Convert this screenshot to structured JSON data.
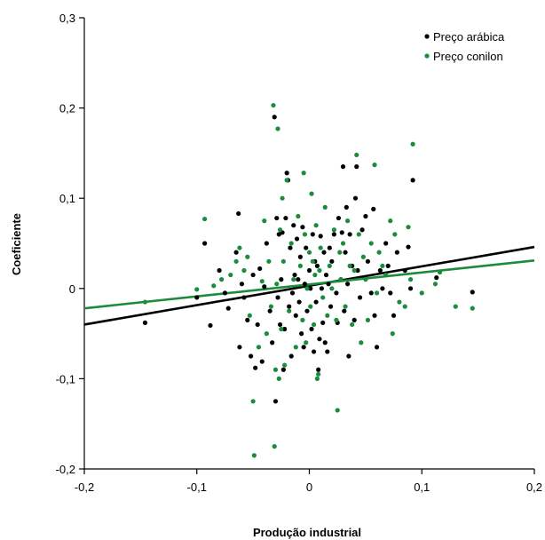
{
  "chart_data": {
    "type": "scatter",
    "title": "",
    "xlabel": "Produção industrial",
    "ylabel": "Coeficiente",
    "xlim": [
      -0.2,
      0.2
    ],
    "ylim": [
      -0.2,
      0.3
    ],
    "xticks": [
      -0.2,
      -0.1,
      0,
      0.1,
      0.2
    ],
    "xtick_labels": [
      "-0,2",
      "-0,1",
      "0",
      "0,1",
      "0,2"
    ],
    "yticks": [
      -0.2,
      -0.1,
      0,
      0.1,
      0.2,
      0.3
    ],
    "ytick_labels": [
      "-0,2",
      "-0,1",
      "0",
      "0,1",
      "0,2",
      "0,3"
    ],
    "grid": false,
    "legend_position": "top-right",
    "series": [
      {
        "name": "Preço arábica",
        "color": "#000000",
        "trendline": {
          "x": [
            -0.2,
            0.2
          ],
          "y": [
            -0.04,
            0.046
          ]
        },
        "points": [
          [
            -0.146,
            -0.038
          ],
          [
            -0.1,
            -0.01
          ],
          [
            -0.093,
            0.05
          ],
          [
            -0.088,
            -0.041
          ],
          [
            -0.08,
            0.02
          ],
          [
            -0.075,
            -0.005
          ],
          [
            -0.072,
            -0.022
          ],
          [
            -0.065,
            0.04
          ],
          [
            -0.063,
            0.083
          ],
          [
            -0.062,
            -0.065
          ],
          [
            -0.06,
            0.005
          ],
          [
            -0.058,
            -0.01
          ],
          [
            -0.055,
            -0.035
          ],
          [
            -0.052,
            -0.075
          ],
          [
            -0.05,
            0.015
          ],
          [
            -0.048,
            -0.088
          ],
          [
            -0.046,
            -0.04
          ],
          [
            -0.044,
            0.022
          ],
          [
            -0.042,
            -0.081
          ],
          [
            -0.04,
            0.002
          ],
          [
            -0.038,
            0.05
          ],
          [
            -0.035,
            -0.025
          ],
          [
            -0.033,
            -0.06
          ],
          [
            -0.031,
            0.19
          ],
          [
            -0.03,
            -0.125
          ],
          [
            -0.029,
            0.078
          ],
          [
            -0.028,
            -0.01
          ],
          [
            -0.027,
            0.06
          ],
          [
            -0.026,
            -0.04
          ],
          [
            -0.025,
            0.01
          ],
          [
            -0.024,
            0.062
          ],
          [
            -0.023,
            -0.09
          ],
          [
            -0.022,
            -0.045
          ],
          [
            -0.021,
            0.078
          ],
          [
            -0.02,
            0.128
          ],
          [
            -0.019,
            0.12
          ],
          [
            -0.018,
            -0.02
          ],
          [
            -0.017,
            0.045
          ],
          [
            -0.016,
            -0.075
          ],
          [
            -0.015,
            -0.005
          ],
          [
            -0.014,
            0.07
          ],
          [
            -0.013,
            0.015
          ],
          [
            -0.012,
            -0.03
          ],
          [
            -0.011,
            0.055
          ],
          [
            -0.01,
            0.01
          ],
          [
            -0.009,
            -0.015
          ],
          [
            -0.008,
            0.035
          ],
          [
            -0.007,
            -0.05
          ],
          [
            -0.006,
            0.068
          ],
          [
            -0.005,
            -0.065
          ],
          [
            -0.004,
            0.005
          ],
          [
            -0.003,
            0.045
          ],
          [
            -0.002,
            -0.025
          ],
          [
            0.0,
            0.02
          ],
          [
            0.001,
            0.0
          ],
          [
            0.002,
            -0.045
          ],
          [
            0.003,
            0.06
          ],
          [
            0.004,
            -0.07
          ],
          [
            0.005,
            0.03
          ],
          [
            0.006,
            -0.015
          ],
          [
            0.007,
            0.025
          ],
          [
            0.008,
            -0.09
          ],
          [
            0.009,
            -0.056
          ],
          [
            0.01,
            0.058
          ],
          [
            0.011,
            0.0
          ],
          [
            0.012,
            -0.038
          ],
          [
            0.013,
            0.04
          ],
          [
            0.014,
            -0.06
          ],
          [
            0.015,
            0.015
          ],
          [
            0.016,
            -0.07
          ],
          [
            0.017,
            0.005
          ],
          [
            0.018,
            0.045
          ],
          [
            0.019,
            -0.02
          ],
          [
            0.02,
            0.03
          ],
          [
            0.022,
            0.06
          ],
          [
            0.024,
            -0.005
          ],
          [
            0.025,
            -0.038
          ],
          [
            0.026,
            0.078
          ],
          [
            0.028,
            0.01
          ],
          [
            0.029,
            0.062
          ],
          [
            0.03,
            0.135
          ],
          [
            0.031,
            -0.025
          ],
          [
            0.032,
            0.04
          ],
          [
            0.033,
            0.09
          ],
          [
            0.034,
            0.005
          ],
          [
            0.035,
            -0.075
          ],
          [
            0.036,
            0.06
          ],
          [
            0.038,
            0.025
          ],
          [
            0.04,
            -0.035
          ],
          [
            0.041,
            0.1
          ],
          [
            0.042,
            0.135
          ],
          [
            0.043,
            0.02
          ],
          [
            0.045,
            -0.01
          ],
          [
            0.047,
            0.065
          ],
          [
            0.05,
            0.08
          ],
          [
            0.052,
            0.03
          ],
          [
            0.055,
            -0.005
          ],
          [
            0.057,
            0.088
          ],
          [
            0.058,
            -0.03
          ],
          [
            0.06,
            -0.065
          ],
          [
            0.063,
            0.02
          ],
          [
            0.065,
            0.0
          ],
          [
            0.068,
            0.05
          ],
          [
            0.07,
            0.025
          ],
          [
            0.072,
            -0.005
          ],
          [
            0.075,
            -0.03
          ],
          [
            0.078,
            0.04
          ],
          [
            0.085,
            0.02
          ],
          [
            0.088,
            0.046
          ],
          [
            0.09,
            0.0
          ],
          [
            0.092,
            0.12
          ],
          [
            0.113,
            0.012
          ],
          [
            0.145,
            -0.004
          ]
        ]
      },
      {
        "name": "Preço conilon",
        "color": "#1a8c3a",
        "trendline": {
          "x": [
            -0.2,
            0.2
          ],
          "y": [
            -0.022,
            0.031
          ]
        },
        "points": [
          [
            -0.146,
            -0.015
          ],
          [
            -0.1,
            -0.001
          ],
          [
            -0.093,
            0.077
          ],
          [
            -0.085,
            0.003
          ],
          [
            -0.078,
            0.01
          ],
          [
            -0.07,
            0.015
          ],
          [
            -0.065,
            0.03
          ],
          [
            -0.062,
            0.045
          ],
          [
            -0.058,
            0.02
          ],
          [
            -0.055,
            0.035
          ],
          [
            -0.053,
            -0.03
          ],
          [
            -0.05,
            -0.125
          ],
          [
            -0.049,
            -0.185
          ],
          [
            -0.045,
            -0.065
          ],
          [
            -0.042,
            0.008
          ],
          [
            -0.04,
            0.075
          ],
          [
            -0.038,
            -0.05
          ],
          [
            -0.036,
            0.03
          ],
          [
            -0.034,
            -0.02
          ],
          [
            -0.032,
            0.203
          ],
          [
            -0.031,
            -0.175
          ],
          [
            -0.03,
            -0.09
          ],
          [
            -0.029,
            0.005
          ],
          [
            -0.028,
            0.177
          ],
          [
            -0.027,
            -0.1
          ],
          [
            -0.026,
            0.065
          ],
          [
            -0.025,
            -0.045
          ],
          [
            -0.024,
            0.1
          ],
          [
            -0.023,
            0.03
          ],
          [
            -0.022,
            -0.085
          ],
          [
            -0.02,
            0.12
          ],
          [
            -0.018,
            -0.025
          ],
          [
            -0.016,
            0.05
          ],
          [
            -0.014,
            0.01
          ],
          [
            -0.012,
            -0.065
          ],
          [
            -0.01,
            0.08
          ],
          [
            -0.008,
            0.025
          ],
          [
            -0.006,
            -0.035
          ],
          [
            -0.005,
            0.128
          ],
          [
            -0.004,
            0.06
          ],
          [
            -0.003,
            -0.06
          ],
          [
            -0.002,
            0.0
          ],
          [
            0.0,
            0.04
          ],
          [
            0.001,
            -0.02
          ],
          [
            0.002,
            0.105
          ],
          [
            0.003,
            0.03
          ],
          [
            0.004,
            -0.04
          ],
          [
            0.005,
            0.015
          ],
          [
            0.006,
            0.07
          ],
          [
            0.007,
            -0.1
          ],
          [
            0.008,
            -0.095
          ],
          [
            0.009,
            0.02
          ],
          [
            0.01,
            0.045
          ],
          [
            0.012,
            -0.01
          ],
          [
            0.014,
            0.09
          ],
          [
            0.016,
            -0.03
          ],
          [
            0.018,
            0.025
          ],
          [
            0.02,
            0.0
          ],
          [
            0.022,
            0.065
          ],
          [
            0.024,
            -0.035
          ],
          [
            0.025,
            -0.135
          ],
          [
            0.027,
            0.04
          ],
          [
            0.028,
            0.01
          ],
          [
            0.03,
            0.05
          ],
          [
            0.032,
            -0.02
          ],
          [
            0.034,
            0.075
          ],
          [
            0.036,
            0.025
          ],
          [
            0.038,
            -0.04
          ],
          [
            0.04,
            0.02
          ],
          [
            0.042,
            0.148
          ],
          [
            0.044,
            0.06
          ],
          [
            0.046,
            -0.06
          ],
          [
            0.048,
            0.035
          ],
          [
            0.05,
            0.01
          ],
          [
            0.052,
            -0.035
          ],
          [
            0.055,
            0.05
          ],
          [
            0.058,
            0.137
          ],
          [
            0.06,
            -0.005
          ],
          [
            0.062,
            0.04
          ],
          [
            0.065,
            0.025
          ],
          [
            0.068,
            0.015
          ],
          [
            0.072,
            0.075
          ],
          [
            0.074,
            -0.05
          ],
          [
            0.076,
            0.06
          ],
          [
            0.08,
            -0.015
          ],
          [
            0.085,
            -0.02
          ],
          [
            0.088,
            0.068
          ],
          [
            0.09,
            0.01
          ],
          [
            0.092,
            0.16
          ],
          [
            0.1,
            -0.005
          ],
          [
            0.112,
            0.005
          ],
          [
            0.116,
            0.018
          ],
          [
            0.13,
            -0.02
          ],
          [
            0.145,
            -0.022
          ]
        ]
      }
    ]
  }
}
